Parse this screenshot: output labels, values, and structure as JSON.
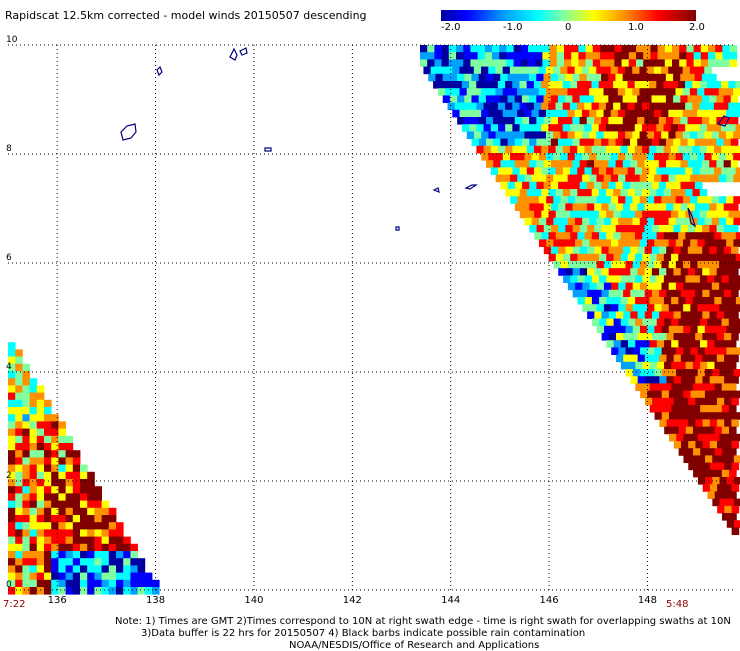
{
  "title": "Rapidscat 12.5km corrected - model winds 20150507 descending",
  "colorbar": {
    "labels": [
      "-2.0",
      "-1.0",
      "0",
      "1.0",
      "2.0"
    ],
    "colors": [
      "#0000a0",
      "#0000ff",
      "#00a0ff",
      "#00ffff",
      "#80ffa0",
      "#ffff00",
      "#ff9000",
      "#ff0000",
      "#800000"
    ]
  },
  "chart_data": {
    "type": "heatmap",
    "variable": "corrected - model wind difference",
    "xlim": [
      135,
      149.8
    ],
    "ylim": [
      0,
      10
    ],
    "x_tick_labels": [
      "136",
      "138",
      "140",
      "142",
      "144",
      "146",
      "148"
    ],
    "y_tick_labels": [
      "0",
      "2",
      "4",
      "6",
      "8",
      "10"
    ],
    "grid": true
  },
  "times": {
    "left": "7:22",
    "right": "5:48"
  },
  "notes": [
    "Note: 1) Times are GMT 2)Times correspond to 10N at right swath edge - time is right swath for overlapping swaths at 10N",
    "3)Data buffer is 22 hrs for 20150507 4) Black barbs indicate possible rain contamination",
    "NOAA/NESDIS/Office of Research and Applications"
  ]
}
